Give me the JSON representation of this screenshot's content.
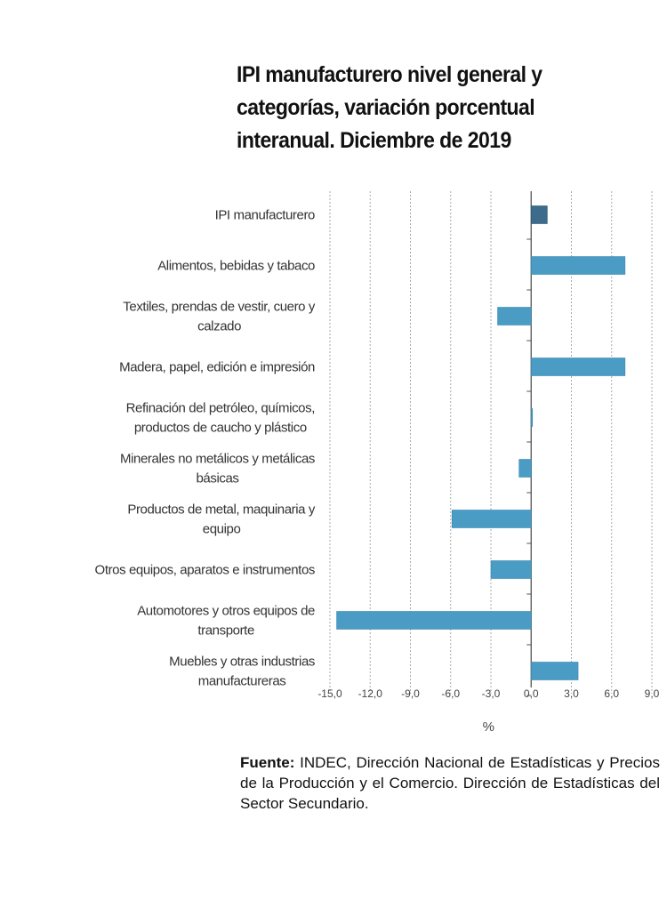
{
  "chart_data": {
    "type": "bar",
    "orientation": "horizontal",
    "title": "IPI manufacturero nivel general y categorías, variación porcentual interanual. Diciembre de 2019",
    "xlabel": "%",
    "ylabel": "",
    "xlim": [
      -15,
      9
    ],
    "xticks": [
      "-15,0",
      "-12,0",
      "-9,0",
      "-6,0",
      "-3,0",
      "0,0",
      "3,0",
      "6,0",
      "9,0"
    ],
    "grid": "vertical dotted",
    "categories": [
      [
        "IPI manufacturero"
      ],
      [
        "Alimentos, bebidas y tabaco"
      ],
      [
        "Textiles, prendas de vestir, cuero y",
        "calzado"
      ],
      [
        "Madera, papel, edición e impresión"
      ],
      [
        "Refinación del petróleo, químicos,",
        "productos de caucho y plástico"
      ],
      [
        "Minerales no metálicos y metálicas",
        "básicas"
      ],
      [
        "Productos de metal, maquinaria y",
        "equipo"
      ],
      [
        "Otros equipos, aparatos e instrumentos"
      ],
      [
        "Automotores y otros equipos de",
        "transporte"
      ],
      [
        "Muebles y otras industrias",
        "manufactureras"
      ]
    ],
    "values": [
      1.2,
      7.0,
      -2.5,
      7.0,
      0.1,
      -0.9,
      -5.9,
      -3.0,
      -14.5,
      3.5
    ],
    "colors": {
      "total": "#3d6b8c",
      "category": "#4a9cc4"
    }
  },
  "source": {
    "label": "Fuente:",
    "text": " INDEC, Dirección Nacional de Estadísticas y Precios de la Producción y el Comercio. Dirección de Estadísticas del Sector Secundario."
  }
}
